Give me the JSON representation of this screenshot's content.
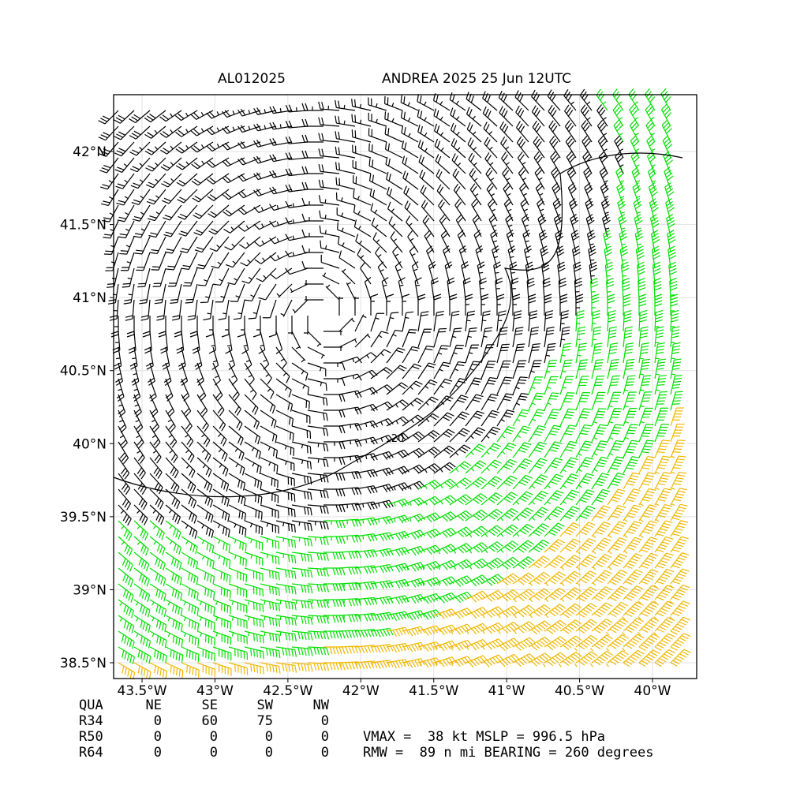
{
  "map": {
    "title_left": "AL012025",
    "title_right": "ANDREA 2025 25 Jun 12UTC",
    "xlim": [
      -43.695,
      -39.697
    ],
    "ylim": [
      38.392,
      42.389
    ],
    "xticks": [
      {
        "value": -43.5,
        "label": "43.5°W"
      },
      {
        "value": -43,
        "label": "43°W"
      },
      {
        "value": -42.5,
        "label": "42.5°W"
      },
      {
        "value": -42,
        "label": "42°W"
      },
      {
        "value": -41.5,
        "label": "41.5°W"
      },
      {
        "value": -41,
        "label": "41°W"
      },
      {
        "value": -40.5,
        "label": "40.5°W"
      },
      {
        "value": -40,
        "label": "40°W"
      }
    ],
    "yticks": [
      {
        "value": 38.5,
        "label": "38.5°N"
      },
      {
        "value": 39,
        "label": "39°N"
      },
      {
        "value": 39.5,
        "label": "39.5°N"
      },
      {
        "value": 40,
        "label": "40°N"
      },
      {
        "value": 40.5,
        "label": "40.5°N"
      },
      {
        "value": 41,
        "label": "41°N"
      },
      {
        "value": 41.5,
        "label": "41.5°N"
      },
      {
        "value": 42,
        "label": "42°N"
      }
    ],
    "contour_label": "20",
    "grid": true
  },
  "table": {
    "header": [
      "QUA",
      "NE",
      "SE",
      "SW",
      "NW"
    ],
    "rows": [
      [
        "R34",
        "0",
        "60",
        "75",
        "0"
      ],
      [
        "R50",
        "0",
        "0",
        "0",
        "0"
      ],
      [
        "R64",
        "0",
        "0",
        "0",
        "0"
      ]
    ]
  },
  "stats": [
    "VMAX =  38 kt MSLP = 996.5 hPa",
    "RMW =  89 n mi BEARING = 260 degrees"
  ]
}
